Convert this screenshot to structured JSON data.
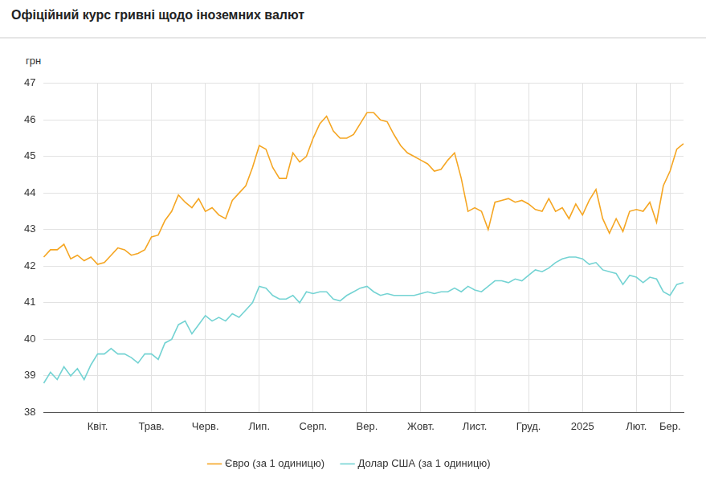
{
  "chart_data": {
    "type": "line",
    "title": "Офіційний курс гривні щодо іноземних валют",
    "y_label": "грн",
    "categories": [
      null,
      null,
      null,
      null,
      null,
      null,
      null,
      null,
      "Квіт.",
      null,
      null,
      null,
      null,
      null,
      null,
      null,
      "Трав.",
      null,
      null,
      null,
      null,
      null,
      null,
      null,
      "Черв.",
      null,
      null,
      null,
      null,
      null,
      null,
      null,
      "Лип.",
      null,
      null,
      null,
      null,
      null,
      null,
      null,
      "Серп.",
      null,
      null,
      null,
      null,
      null,
      null,
      null,
      "Вер.",
      null,
      null,
      null,
      null,
      null,
      null,
      null,
      "Жовт.",
      null,
      null,
      null,
      null,
      null,
      null,
      null,
      "Лист.",
      null,
      null,
      null,
      null,
      null,
      null,
      null,
      "Груд.",
      null,
      null,
      null,
      null,
      null,
      null,
      null,
      "2025",
      null,
      null,
      null,
      null,
      null,
      null,
      null,
      "Лют.",
      null,
      null,
      null,
      null,
      "Бер.",
      null,
      null
    ],
    "series": [
      {
        "name": "Євро (за 1 одиницю)",
        "color": "#f5a623",
        "values": [
          42.25,
          42.45,
          42.45,
          42.6,
          42.2,
          42.3,
          42.15,
          42.25,
          42.05,
          42.1,
          42.3,
          42.5,
          42.45,
          42.3,
          42.35,
          42.45,
          42.8,
          42.85,
          43.25,
          43.5,
          43.95,
          43.75,
          43.6,
          43.85,
          43.5,
          43.6,
          43.4,
          43.3,
          43.8,
          44,
          44.2,
          44.7,
          45.3,
          45.2,
          44.7,
          44.4,
          44.4,
          45.1,
          44.85,
          45,
          45.5,
          45.9,
          46.1,
          45.7,
          45.5,
          45.5,
          45.6,
          45.9,
          46.2,
          46.2,
          46,
          45.95,
          45.6,
          45.3,
          45.1,
          45,
          44.9,
          44.8,
          44.6,
          44.65,
          44.9,
          45.1,
          44.4,
          43.5,
          43.6,
          43.5,
          43,
          43.75,
          43.8,
          43.85,
          43.75,
          43.8,
          43.7,
          43.55,
          43.5,
          43.85,
          43.5,
          43.6,
          43.3,
          43.7,
          43.4,
          43.8,
          44.1,
          43.3,
          42.9,
          43.3,
          42.95,
          43.5,
          43.55,
          43.5,
          43.75,
          43.2,
          44.2,
          44.6,
          45.2,
          45.35
        ]
      },
      {
        "name": "Долар США (за 1 одиницю)",
        "color": "#74d3d3",
        "values": [
          38.8,
          39.1,
          38.9,
          39.25,
          39,
          39.2,
          38.9,
          39.3,
          39.6,
          39.6,
          39.75,
          39.6,
          39.6,
          39.5,
          39.35,
          39.6,
          39.6,
          39.45,
          39.9,
          40,
          40.4,
          40.5,
          40.15,
          40.4,
          40.65,
          40.5,
          40.6,
          40.5,
          40.7,
          40.6,
          40.8,
          41,
          41.45,
          41.4,
          41.2,
          41.1,
          41.1,
          41.2,
          41,
          41.3,
          41.25,
          41.3,
          41.3,
          41.1,
          41.05,
          41.2,
          41.3,
          41.4,
          41.45,
          41.3,
          41.2,
          41.25,
          41.2,
          41.2,
          41.2,
          41.2,
          41.25,
          41.3,
          41.25,
          41.3,
          41.3,
          41.4,
          41.3,
          41.45,
          41.35,
          41.3,
          41.45,
          41.6,
          41.6,
          41.55,
          41.65,
          41.6,
          41.75,
          41.9,
          41.85,
          41.95,
          42.1,
          42.2,
          42.25,
          42.25,
          42.2,
          42.05,
          42.1,
          41.9,
          41.85,
          41.8,
          41.5,
          41.75,
          41.7,
          41.55,
          41.7,
          41.65,
          41.3,
          41.2,
          41.5,
          41.55
        ]
      }
    ],
    "ylim": [
      38,
      47
    ],
    "yticks": [
      38,
      39,
      40,
      41,
      42,
      43,
      44,
      45,
      46,
      47
    ],
    "grid": true,
    "legend": "bottom"
  }
}
